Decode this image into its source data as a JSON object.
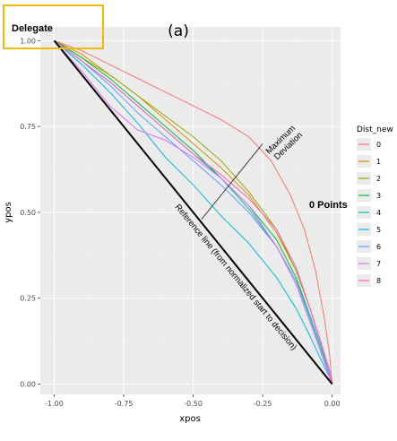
{
  "chart_data": {
    "type": "line",
    "panel_label": "(a)",
    "xlabel": "xpos",
    "ylabel": "ypos",
    "xlim": [
      -1.05,
      0.03
    ],
    "ylim": [
      -0.03,
      1.04
    ],
    "x_ticks": [
      -1.0,
      -0.75,
      -0.5,
      -0.25,
      0.0
    ],
    "x_tick_labels": [
      "-1.00",
      "-0.75",
      "-0.50",
      "-0.25",
      "0.00"
    ],
    "y_ticks": [
      0.0,
      0.25,
      0.5,
      0.75,
      1.0
    ],
    "y_tick_labels": [
      "0.00",
      "0.25",
      "0.50",
      "0.75",
      "1.00"
    ],
    "grid": true,
    "legend": {
      "title": "Dist_new",
      "position": "right"
    },
    "series": [
      {
        "name": "0",
        "color": "#F8766D",
        "x": [
          -1.0,
          -0.9,
          -0.8,
          -0.7,
          -0.6,
          -0.5,
          -0.4,
          -0.3,
          -0.22,
          -0.15,
          -0.1,
          -0.06,
          -0.03,
          -0.01,
          0.0
        ],
        "y": [
          1.0,
          0.97,
          0.93,
          0.89,
          0.85,
          0.81,
          0.77,
          0.72,
          0.65,
          0.55,
          0.45,
          0.33,
          0.2,
          0.09,
          0.0
        ]
      },
      {
        "name": "1",
        "color": "#D39200",
        "x": [
          -1.0,
          -0.9,
          -0.8,
          -0.7,
          -0.6,
          -0.5,
          -0.4,
          -0.3,
          -0.2,
          -0.13,
          -0.08,
          -0.04,
          -0.01,
          0.0
        ],
        "y": [
          1.0,
          0.96,
          0.9,
          0.84,
          0.77,
          0.7,
          0.63,
          0.55,
          0.44,
          0.33,
          0.22,
          0.12,
          0.04,
          0.0
        ]
      },
      {
        "name": "2",
        "color": "#93AA00",
        "x": [
          -1.0,
          -0.9,
          -0.8,
          -0.7,
          -0.6,
          -0.5,
          -0.4,
          -0.3,
          -0.2,
          -0.13,
          -0.08,
          -0.04,
          -0.01,
          0.0
        ],
        "y": [
          1.0,
          0.95,
          0.9,
          0.84,
          0.78,
          0.72,
          0.65,
          0.56,
          0.45,
          0.33,
          0.22,
          0.12,
          0.04,
          0.0
        ]
      },
      {
        "name": "3",
        "color": "#00BA38",
        "x": [
          -1.0,
          -0.9,
          -0.8,
          -0.7,
          -0.6,
          -0.5,
          -0.4,
          -0.3,
          -0.2,
          -0.13,
          -0.08,
          -0.04,
          -0.01,
          0.0
        ],
        "y": [
          1.0,
          0.95,
          0.89,
          0.82,
          0.75,
          0.68,
          0.6,
          0.52,
          0.42,
          0.31,
          0.2,
          0.11,
          0.03,
          0.0
        ]
      },
      {
        "name": "4",
        "color": "#00C19F",
        "x": [
          -1.0,
          -0.9,
          -0.8,
          -0.7,
          -0.6,
          -0.5,
          -0.4,
          -0.3,
          -0.2,
          -0.13,
          -0.08,
          -0.04,
          -0.01,
          0.0
        ],
        "y": [
          1.0,
          0.94,
          0.88,
          0.81,
          0.74,
          0.67,
          0.6,
          0.51,
          0.4,
          0.3,
          0.19,
          0.1,
          0.03,
          0.0
        ]
      },
      {
        "name": "5",
        "color": "#00B9E3",
        "x": [
          -1.0,
          -0.9,
          -0.8,
          -0.7,
          -0.6,
          -0.5,
          -0.4,
          -0.3,
          -0.2,
          -0.13,
          -0.08,
          -0.04,
          -0.01,
          0.0
        ],
        "y": [
          1.0,
          0.93,
          0.85,
          0.76,
          0.66,
          0.58,
          0.49,
          0.41,
          0.31,
          0.22,
          0.14,
          0.07,
          0.02,
          0.0
        ]
      },
      {
        "name": "6",
        "color": "#619CFF",
        "x": [
          -1.0,
          -0.9,
          -0.8,
          -0.7,
          -0.6,
          -0.5,
          -0.4,
          -0.3,
          -0.2,
          -0.13,
          -0.08,
          -0.04,
          -0.01,
          0.0
        ],
        "y": [
          1.0,
          0.94,
          0.87,
          0.79,
          0.72,
          0.65,
          0.58,
          0.5,
          0.4,
          0.3,
          0.2,
          0.11,
          0.03,
          0.0
        ]
      },
      {
        "name": "7",
        "color": "#DB72FB",
        "x": [
          -1.0,
          -0.9,
          -0.8,
          -0.7,
          -0.6,
          -0.5,
          -0.4,
          -0.3,
          -0.2,
          -0.13,
          -0.08,
          -0.04,
          -0.01,
          0.0
        ],
        "y": [
          1.0,
          0.91,
          0.81,
          0.74,
          0.71,
          0.66,
          0.6,
          0.52,
          0.4,
          0.29,
          0.18,
          0.09,
          0.02,
          0.0
        ]
      },
      {
        "name": "8",
        "color": "#FF61C3",
        "x": [
          -1.0,
          -0.9,
          -0.8,
          -0.7,
          -0.6,
          -0.5,
          -0.4,
          -0.3,
          -0.2,
          -0.13,
          -0.08,
          -0.04,
          -0.01,
          0.0
        ],
        "y": [
          1.0,
          0.94,
          0.88,
          0.81,
          0.74,
          0.67,
          0.61,
          0.54,
          0.45,
          0.34,
          0.22,
          0.12,
          0.04,
          0.0
        ]
      }
    ],
    "reference_line": {
      "x": [
        -1.0,
        0.0
      ],
      "y": [
        1.0,
        0.0
      ],
      "label": "Reference line (from normalized start to decision)",
      "color": "#000000"
    },
    "deviation_line": {
      "x": [
        -0.47,
        -0.25
      ],
      "y": [
        0.48,
        0.7
      ],
      "label": "Maximum Deviation",
      "color": "#000000"
    },
    "annotations": [
      {
        "text": "Delegate",
        "x": -0.975,
        "y": 1.035,
        "box_color": "#F5B800"
      },
      {
        "text": "0 Points",
        "x": -0.09,
        "y": 0.5
      }
    ]
  }
}
